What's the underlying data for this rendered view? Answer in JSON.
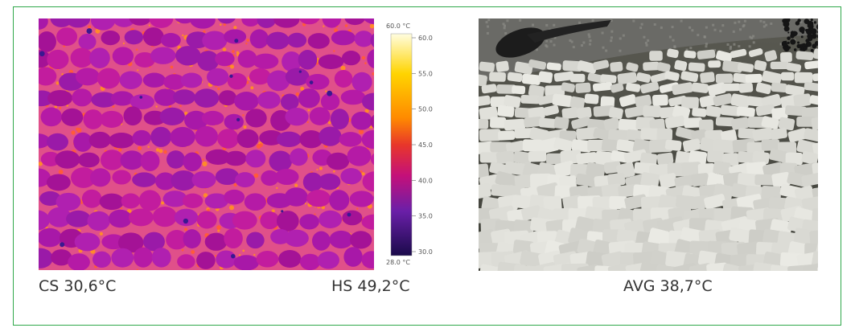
{
  "thermal_image": {
    "description_icon": "thermal-camera-image",
    "scale": {
      "top_label": "60.0 °C",
      "bottom_label": "28.0 °C",
      "ticks": [
        "60.0",
        "55.0",
        "50.0",
        "45.0",
        "40.0",
        "35.0",
        "30.0"
      ],
      "colors": [
        "#fffde0",
        "#ffd400",
        "#ff8a00",
        "#e8372a",
        "#c4107a",
        "#6a1fa8",
        "#1a0a4a"
      ]
    }
  },
  "photo_image": {
    "description_icon": "cobblestone-photo"
  },
  "captions": {
    "cs": "CS 30,6°C",
    "hs": "HS 49,2°C",
    "avg": "AVG 38,7°C"
  },
  "colors": {
    "border": "#2fa84a",
    "thermal_base": "#b81ca8",
    "thermal_hot": "#ff7a2a",
    "thermal_cold": "#4a1aa0"
  }
}
